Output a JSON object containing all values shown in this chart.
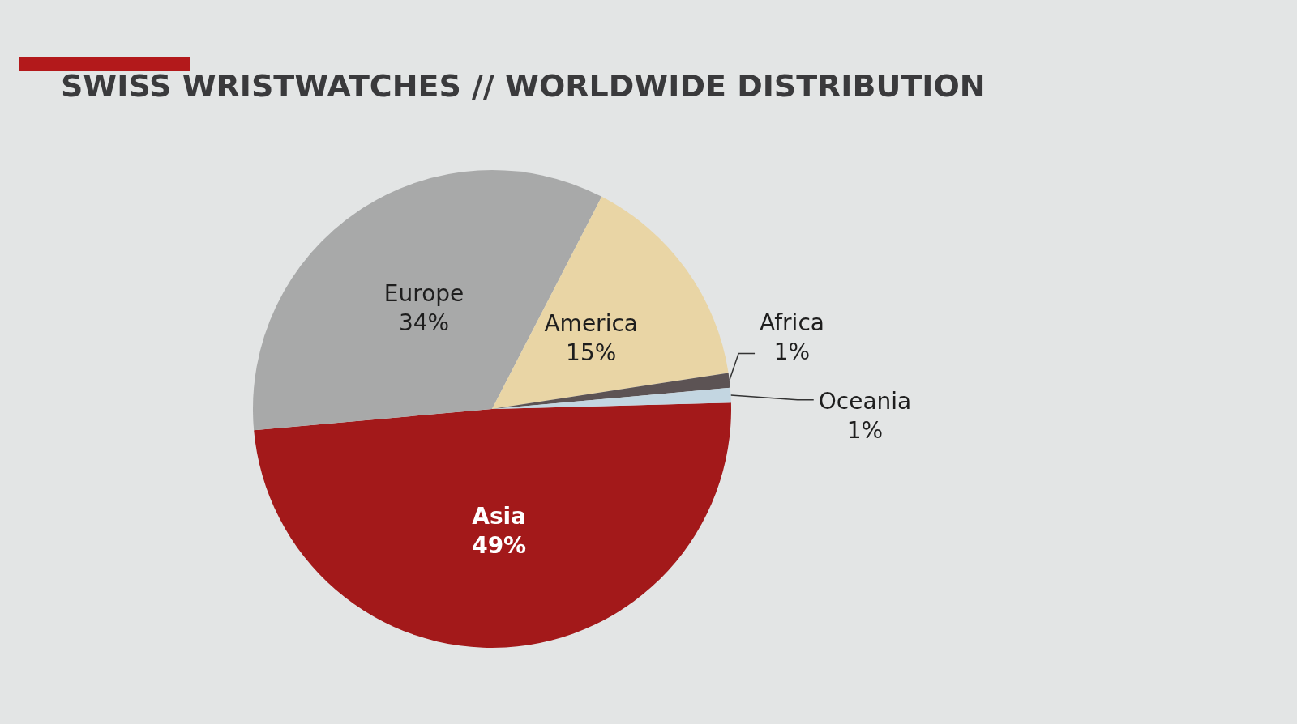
{
  "chart_data": {
    "type": "pie",
    "title": "SWISS WRISTWATCHES // WORLDWIDE DISTRIBUTION",
    "categories": [
      "Asia",
      "Europe",
      "America",
      "Africa",
      "Oceania"
    ],
    "values": [
      49,
      34,
      15,
      1,
      1
    ],
    "colors": [
      "#a3191a",
      "#a8a9a9",
      "#e9d5a5",
      "#5c5354",
      "#c3d6e1"
    ],
    "value_labels": [
      "49%",
      "34%",
      "15%",
      "1%",
      "1%"
    ]
  }
}
